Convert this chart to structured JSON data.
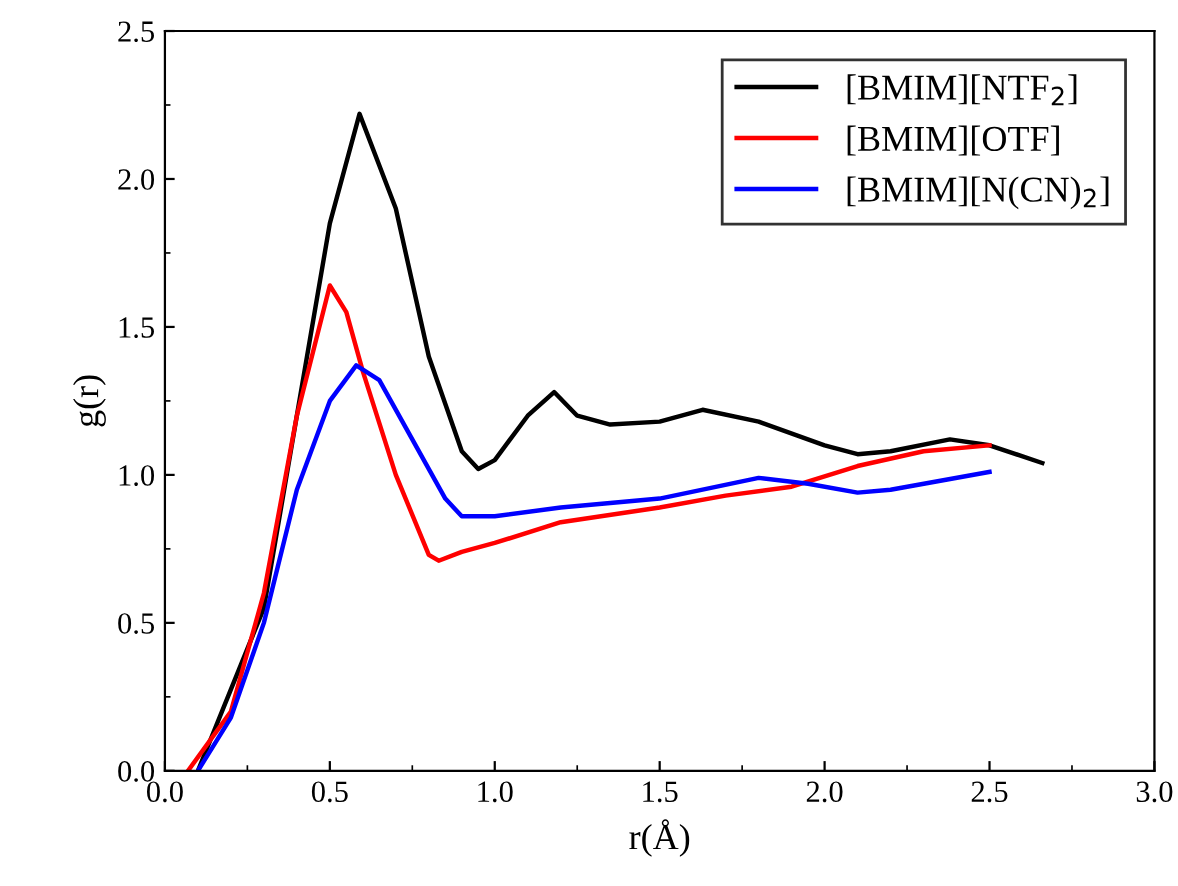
{
  "chart_data": {
    "type": "line",
    "xlabel": "r(Å)",
    "ylabel": "g(r)",
    "xlim": [
      0,
      3.0
    ],
    "ylim": [
      0,
      2.5
    ],
    "xticks": [
      {
        "value": 0,
        "label": "0.0"
      },
      {
        "value": 0.5,
        "label": "0.5"
      },
      {
        "value": 1.0,
        "label": "1.0"
      },
      {
        "value": 1.5,
        "label": "1.5"
      },
      {
        "value": 2.0,
        "label": "2.0"
      },
      {
        "value": 2.5,
        "label": "2.5"
      },
      {
        "value": 3.0,
        "label": "3.0"
      }
    ],
    "yticks": [
      {
        "value": 0,
        "label": "0.0"
      },
      {
        "value": 0.5,
        "label": "0.5"
      },
      {
        "value": 1.0,
        "label": "1.0"
      },
      {
        "value": 1.5,
        "label": "1.5"
      },
      {
        "value": 2.0,
        "label": "2.0"
      },
      {
        "value": 2.5,
        "label": "2.5"
      }
    ],
    "legend": "top right",
    "grid": false,
    "series": [
      {
        "name": "[BMIM][NTF$_{2}$]",
        "color": "#000000",
        "x": [
          0.1,
          0.3,
          0.4,
          0.5,
          0.59,
          0.7,
          0.8,
          0.9,
          0.95,
          1.0,
          1.1,
          1.18,
          1.25,
          1.35,
          1.5,
          1.63,
          1.8,
          2.0,
          2.1,
          2.2,
          2.38,
          2.5,
          2.66
        ],
        "values": [
          0,
          0.55,
          1.2,
          1.85,
          2.22,
          1.9,
          1.4,
          1.08,
          1.02,
          1.05,
          1.2,
          1.28,
          1.2,
          1.17,
          1.18,
          1.22,
          1.18,
          1.1,
          1.07,
          1.08,
          1.12,
          1.1,
          1.04
        ]
      },
      {
        "name": "[BMIM][OTF]",
        "color": "#ff0000",
        "x": [
          0.07,
          0.2,
          0.3,
          0.4,
          0.5,
          0.55,
          0.6,
          0.7,
          0.8,
          0.83,
          0.9,
          1.0,
          1.2,
          1.5,
          1.7,
          1.9,
          2.1,
          2.3,
          2.5
        ],
        "values": [
          0,
          0.2,
          0.6,
          1.2,
          1.64,
          1.55,
          1.35,
          1.0,
          0.73,
          0.71,
          0.74,
          0.77,
          0.84,
          0.89,
          0.93,
          0.96,
          1.03,
          1.08,
          1.1
        ]
      },
      {
        "name": "[BMIM][N(CN)$_{2}$]",
        "color": "#0000ff",
        "x": [
          0.1,
          0.2,
          0.3,
          0.4,
          0.5,
          0.58,
          0.65,
          0.75,
          0.85,
          0.9,
          1.0,
          1.2,
          1.5,
          1.8,
          1.95,
          2.1,
          2.2,
          2.5
        ],
        "values": [
          0,
          0.18,
          0.5,
          0.95,
          1.25,
          1.37,
          1.32,
          1.12,
          0.92,
          0.86,
          0.86,
          0.89,
          0.92,
          0.99,
          0.97,
          0.94,
          0.95,
          1.01
        ]
      }
    ]
  }
}
